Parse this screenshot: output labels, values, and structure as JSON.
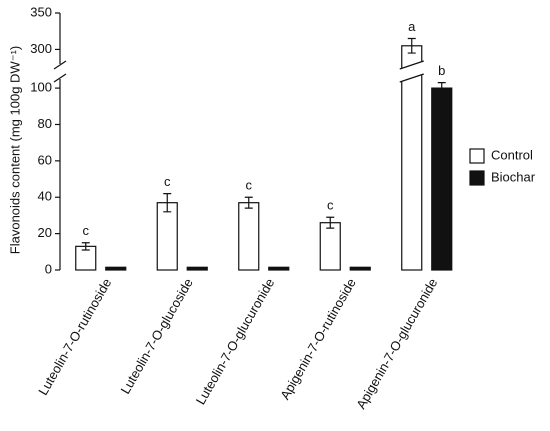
{
  "chart_data": {
    "type": "bar",
    "y_label": "Flavonoids content (mg 100g DW⁻¹)",
    "categories": [
      "Luteolin-7-O-rutinoside",
      "Luteolin-7-O-glucoside",
      "Luteolin-7-O-glucuronide",
      "Apigenin-7-O-rutinoside",
      "Apigenin-7-O-glucuronide"
    ],
    "series": [
      {
        "name": "Control",
        "color": "#ffffff",
        "values": [
          13,
          37,
          37,
          26,
          305
        ],
        "errors": [
          2,
          5,
          3,
          3,
          10
        ],
        "letters": [
          "c",
          "c",
          "c",
          "c",
          "a"
        ]
      },
      {
        "name": "Biochar",
        "color": "#111111",
        "values": [
          1.5,
          1.5,
          1.5,
          1.5,
          100
        ],
        "errors": [
          0,
          0,
          0,
          0,
          3
        ],
        "letters": [
          null,
          null,
          null,
          null,
          "b"
        ]
      }
    ],
    "ylim": [
      0,
      350
    ],
    "yticks": [
      0,
      20,
      40,
      60,
      80,
      100,
      300,
      350
    ],
    "axis_break": [
      105,
      280
    ],
    "legend": "right"
  }
}
